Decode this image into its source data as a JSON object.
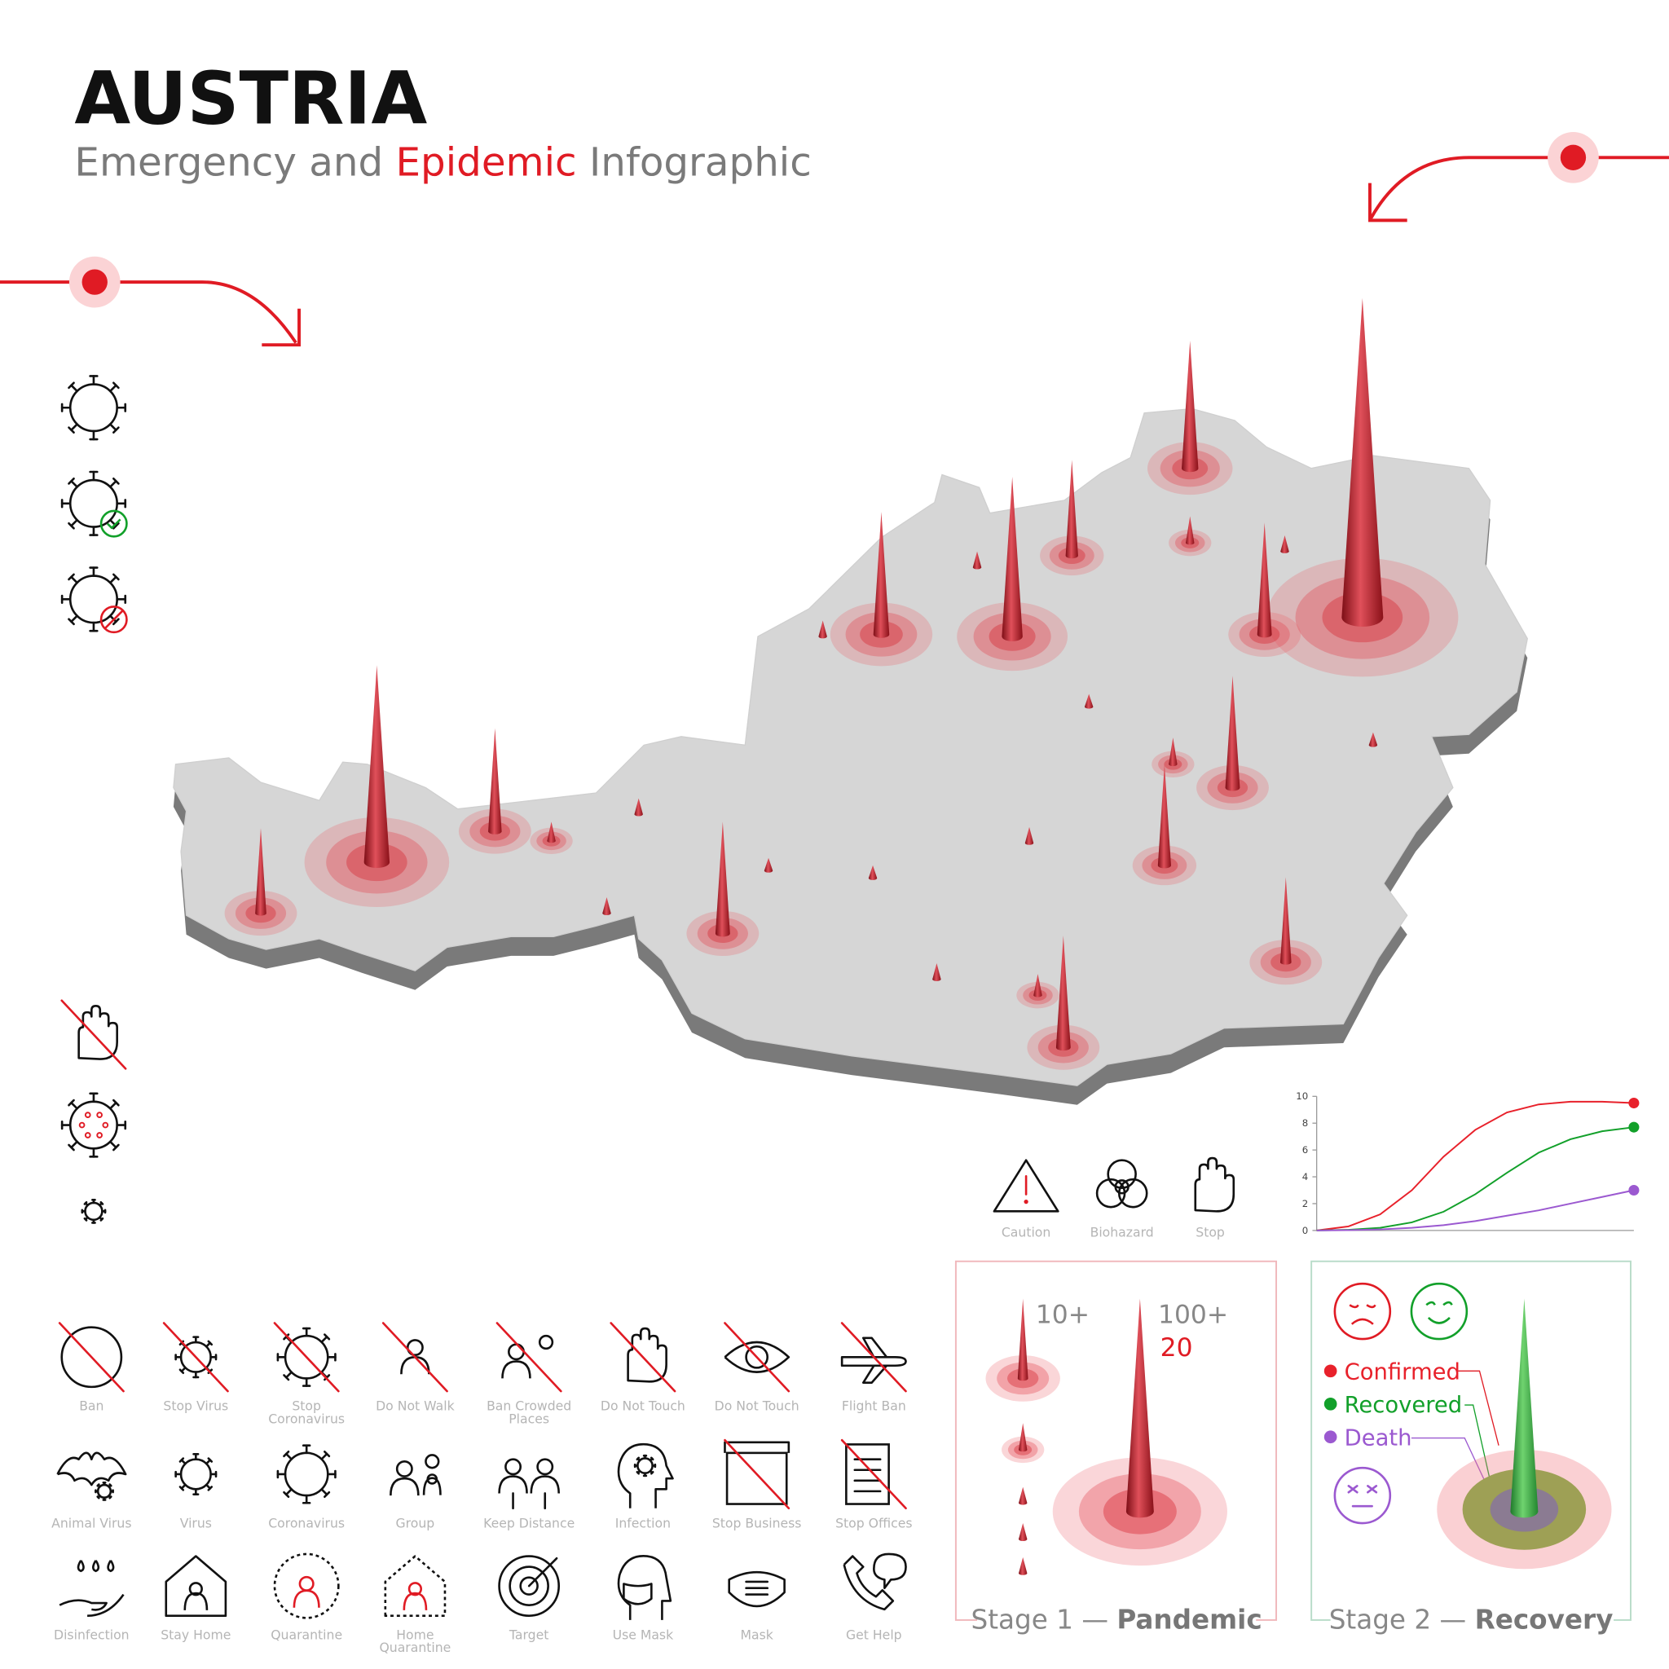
{
  "header": {
    "title": "AUSTRIA",
    "subtitle": [
      "Emergency and",
      "Epidemic",
      "Infographic"
    ]
  },
  "status_icons": [
    "Caution",
    "Biohazard",
    "Stop"
  ],
  "icon_grid": [
    [
      [
        "Ban"
      ],
      [
        "Stop Virus"
      ],
      [
        "Stop",
        "Coronavirus"
      ],
      [
        "Do Not Walk"
      ],
      [
        "Ban Crowded",
        "Places"
      ],
      [
        "Do Not Touch"
      ],
      [
        "Do Not Touch"
      ],
      [
        "Flight Ban"
      ]
    ],
    [
      [
        "Animal Virus"
      ],
      [
        "Virus"
      ],
      [
        "Coronavirus"
      ],
      [
        "Group"
      ],
      [
        "Keep Distance"
      ],
      [
        "Infection"
      ],
      [
        "Stop Business"
      ],
      [
        "Stop Offices"
      ]
    ],
    [
      [
        "Disinfection"
      ],
      [
        "Stay Home"
      ],
      [
        "Quarantine"
      ],
      [
        "Home",
        "Quarantine"
      ],
      [
        "Target"
      ],
      [
        "Use Mask"
      ],
      [
        "Mask"
      ],
      [
        "Get Help"
      ]
    ]
  ],
  "stage1": {
    "title": "Stage 1 —",
    "name": "Pandemic",
    "labels": [
      "10+",
      "100+",
      "20"
    ]
  },
  "stage2": {
    "title": "Stage 2 —",
    "name": "Recovery"
  },
  "chart_data": {
    "type": "line",
    "x": [
      0,
      0.5,
      1,
      1.5,
      2,
      2.5,
      3,
      3.5,
      4,
      4.5,
      5
    ],
    "xlim": [
      0,
      5
    ],
    "ylim": [
      0,
      10
    ],
    "yticks": [
      0,
      2,
      4,
      6,
      8,
      10
    ],
    "series": [
      {
        "name": "Confirmed",
        "color": "#e8212b",
        "values": [
          0,
          0.3,
          1.2,
          3,
          5.5,
          7.5,
          8.8,
          9.4,
          9.6,
          9.6,
          9.5
        ]
      },
      {
        "name": "Recovered",
        "color": "#12a02a",
        "values": [
          0,
          0.05,
          0.2,
          0.6,
          1.4,
          2.7,
          4.3,
          5.8,
          6.8,
          7.4,
          7.7
        ]
      },
      {
        "name": "Death",
        "color": "#9b59d0",
        "values": [
          0,
          0.02,
          0.08,
          0.2,
          0.4,
          0.7,
          1.1,
          1.5,
          2,
          2.5,
          3
        ]
      }
    ]
  }
}
